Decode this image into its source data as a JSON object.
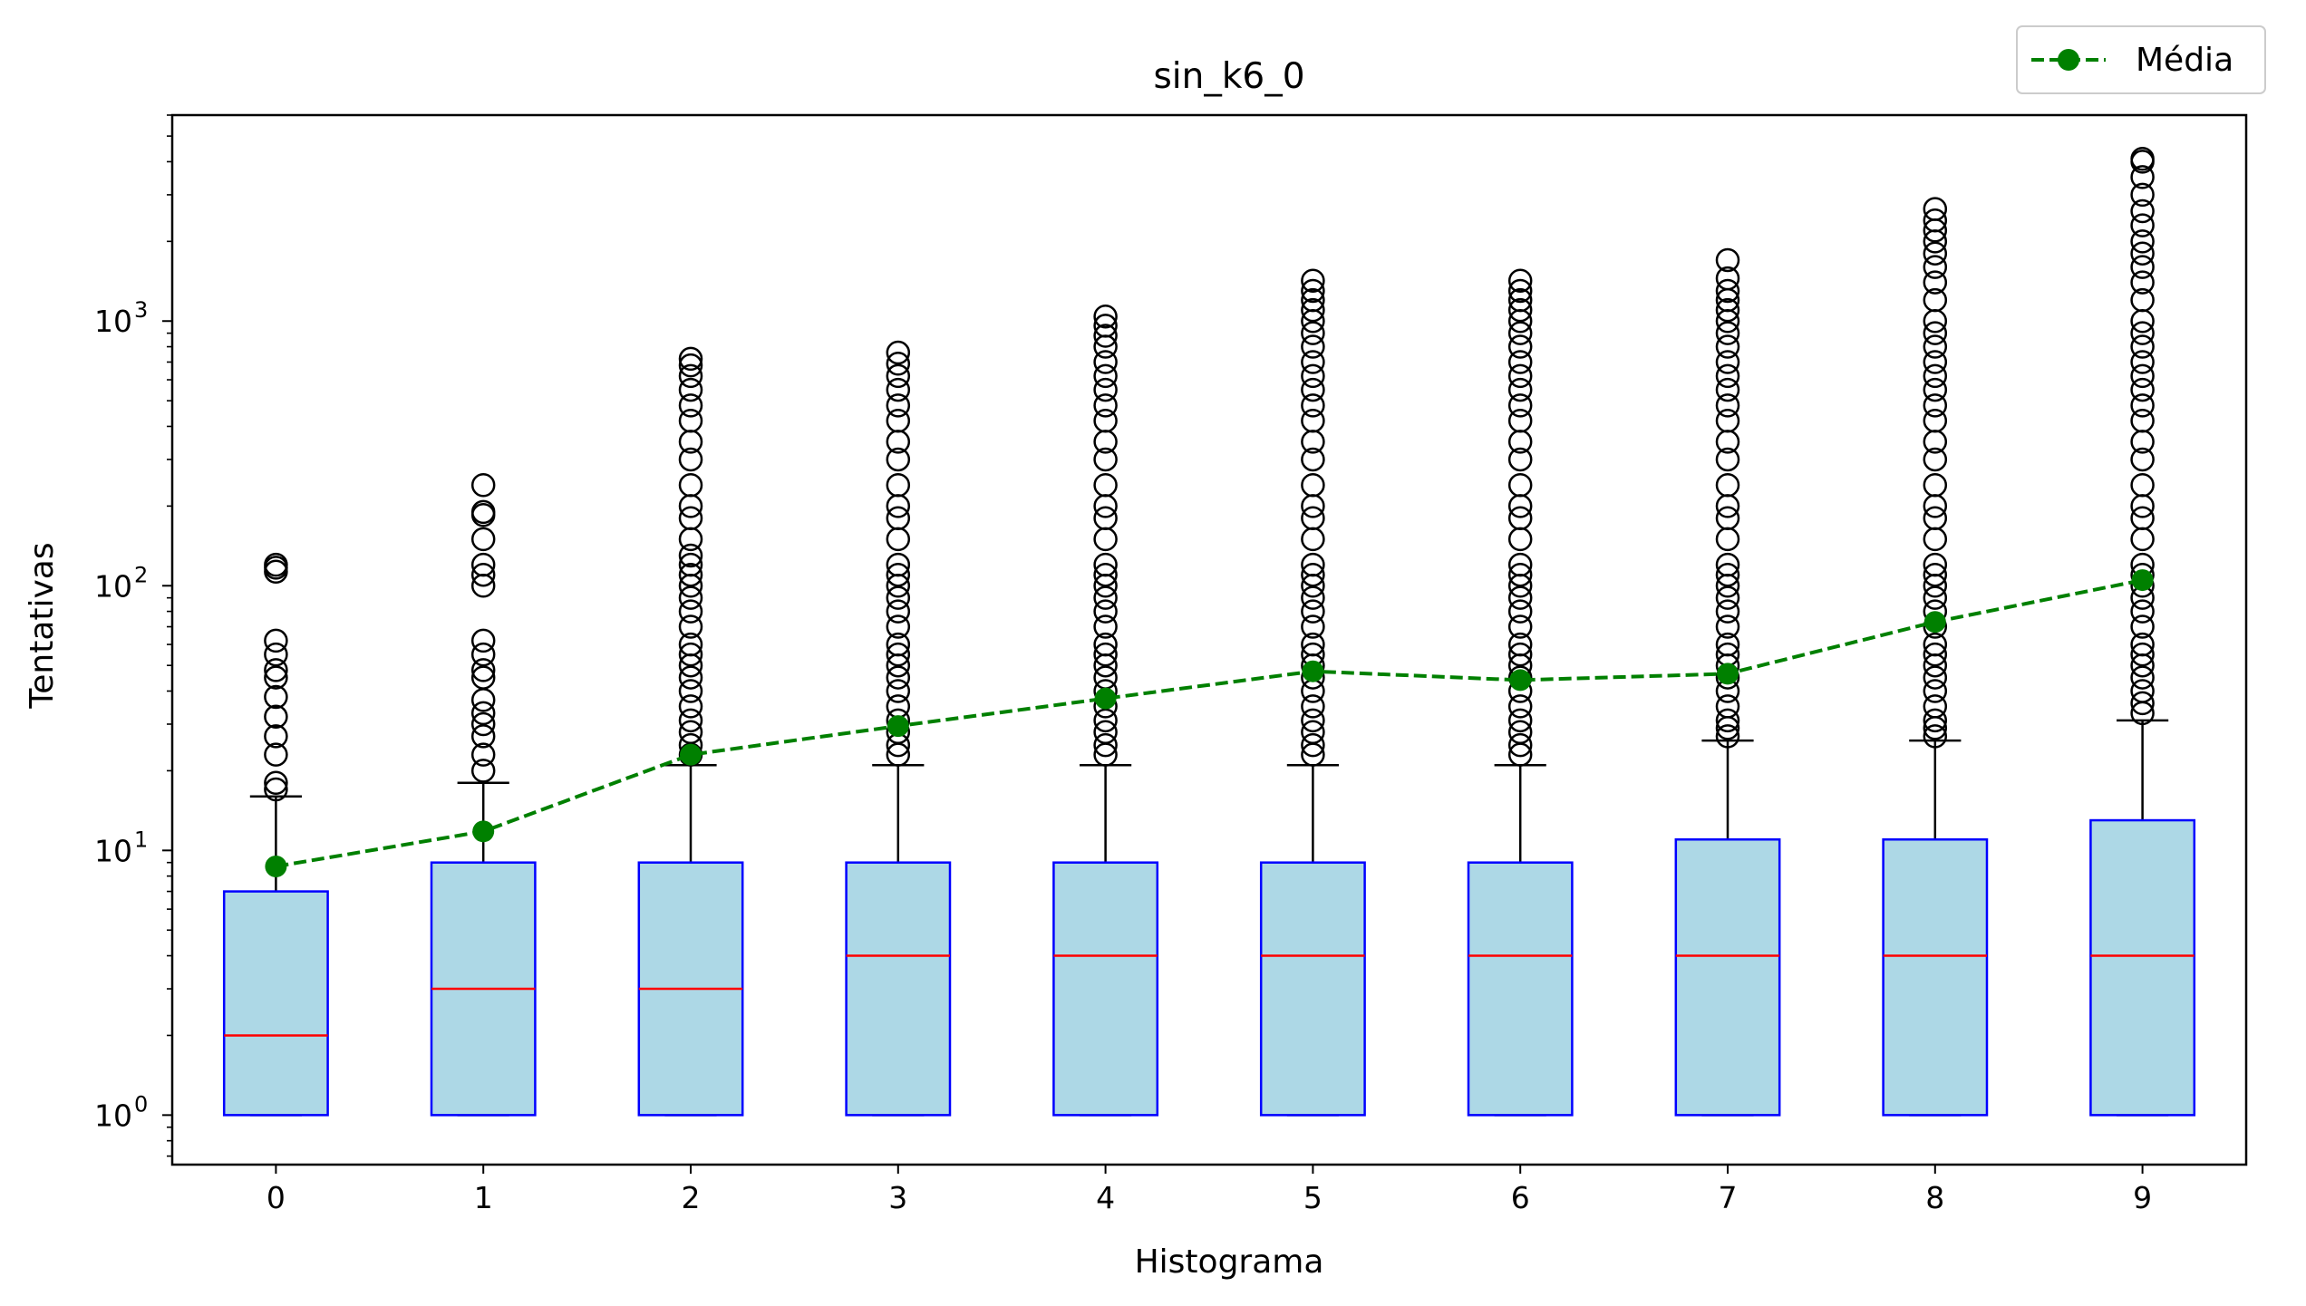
{
  "chart_data": {
    "type": "box",
    "title": "sin_k6_0",
    "xlabel": "Histograma",
    "ylabel": "Tentativas",
    "yscale": "log",
    "ylim": [
      0.65,
      6000
    ],
    "categories": [
      "0",
      "1",
      "2",
      "3",
      "4",
      "5",
      "6",
      "7",
      "8",
      "9"
    ],
    "y_ticks": [
      {
        "base": "10",
        "exp": "0",
        "value": 1
      },
      {
        "base": "10",
        "exp": "1",
        "value": 10
      },
      {
        "base": "10",
        "exp": "2",
        "value": 100
      },
      {
        "base": "10",
        "exp": "3",
        "value": 1000
      }
    ],
    "boxes": [
      {
        "category": "0",
        "whislo": 1,
        "q1": 1,
        "med": 2,
        "q3": 7,
        "whishi": 16,
        "fliers": [
          17,
          18,
          23,
          27,
          32,
          38,
          45,
          48,
          55,
          62,
          113,
          117,
          120
        ]
      },
      {
        "category": "1",
        "whislo": 1,
        "q1": 1,
        "med": 3,
        "q3": 9,
        "whishi": 18,
        "fliers": [
          20,
          23,
          27,
          30,
          33,
          37,
          45,
          48,
          55,
          62,
          100,
          110,
          120,
          150,
          185,
          190,
          240
        ]
      },
      {
        "category": "2",
        "whislo": 1,
        "q1": 1,
        "med": 3,
        "q3": 9,
        "whishi": 21,
        "fliers": [
          23,
          25,
          28,
          31,
          35,
          40,
          45,
          50,
          55,
          60,
          70,
          80,
          90,
          100,
          110,
          120,
          130,
          150,
          180,
          200,
          240,
          300,
          350,
          420,
          480,
          550,
          620,
          680,
          720
        ]
      },
      {
        "category": "3",
        "whislo": 1,
        "q1": 1,
        "med": 4,
        "q3": 9,
        "whishi": 21,
        "fliers": [
          23,
          25,
          28,
          31,
          35,
          40,
          45,
          50,
          55,
          60,
          70,
          80,
          90,
          100,
          110,
          120,
          150,
          180,
          200,
          240,
          300,
          350,
          420,
          480,
          550,
          620,
          690,
          760
        ]
      },
      {
        "category": "4",
        "whislo": 1,
        "q1": 1,
        "med": 4,
        "q3": 9,
        "whishi": 21,
        "fliers": [
          23,
          25,
          28,
          31,
          35,
          40,
          45,
          50,
          55,
          60,
          70,
          80,
          90,
          100,
          110,
          120,
          150,
          180,
          200,
          240,
          300,
          350,
          420,
          480,
          550,
          620,
          700,
          800,
          880,
          960,
          1040
        ]
      },
      {
        "category": "5",
        "whislo": 1,
        "q1": 1,
        "med": 4,
        "q3": 9,
        "whishi": 21,
        "fliers": [
          23,
          25,
          28,
          31,
          35,
          40,
          45,
          50,
          55,
          60,
          70,
          80,
          90,
          100,
          110,
          120,
          150,
          180,
          200,
          240,
          300,
          350,
          420,
          480,
          550,
          620,
          700,
          800,
          900,
          1000,
          1100,
          1200,
          1300,
          1420
        ]
      },
      {
        "category": "6",
        "whislo": 1,
        "q1": 1,
        "med": 4,
        "q3": 9,
        "whishi": 21,
        "fliers": [
          23,
          25,
          28,
          31,
          35,
          40,
          45,
          50,
          55,
          60,
          70,
          80,
          90,
          100,
          110,
          120,
          150,
          180,
          200,
          240,
          300,
          350,
          420,
          480,
          550,
          620,
          700,
          800,
          900,
          1000,
          1100,
          1200,
          1300,
          1420
        ]
      },
      {
        "category": "7",
        "whislo": 1,
        "q1": 1,
        "med": 4,
        "q3": 11,
        "whishi": 26,
        "fliers": [
          27,
          29,
          31,
          35,
          40,
          45,
          50,
          55,
          60,
          70,
          80,
          90,
          100,
          110,
          120,
          150,
          180,
          200,
          240,
          300,
          350,
          420,
          480,
          550,
          620,
          700,
          800,
          900,
          1000,
          1100,
          1200,
          1300,
          1450,
          1700
        ]
      },
      {
        "category": "8",
        "whislo": 1,
        "q1": 1,
        "med": 4,
        "q3": 11,
        "whishi": 26,
        "fliers": [
          27,
          29,
          31,
          35,
          40,
          45,
          50,
          55,
          60,
          70,
          80,
          90,
          100,
          110,
          120,
          150,
          180,
          200,
          240,
          300,
          350,
          420,
          480,
          550,
          620,
          700,
          800,
          900,
          1000,
          1200,
          1400,
          1600,
          1800,
          2000,
          2200,
          2400,
          2650
        ]
      },
      {
        "category": "9",
        "whislo": 1,
        "q1": 1,
        "med": 4,
        "q3": 13,
        "whishi": 31,
        "fliers": [
          33,
          36,
          40,
          45,
          50,
          55,
          60,
          70,
          80,
          90,
          100,
          110,
          120,
          150,
          180,
          200,
          240,
          300,
          350,
          420,
          480,
          550,
          620,
          700,
          800,
          900,
          1000,
          1200,
          1400,
          1600,
          1800,
          2000,
          2300,
          2600,
          3000,
          3500,
          4000,
          4100
        ]
      }
    ],
    "series": [
      {
        "name": "Média",
        "values": [
          8.7,
          11.8,
          23,
          29.5,
          37.5,
          47.5,
          44,
          46.5,
          73,
          105
        ]
      }
    ],
    "legend_position": "top-right",
    "grid": false
  },
  "colors": {
    "box_fill": "#add8e6",
    "box_edge": "#0000ff",
    "median": "#ff0000",
    "mean": "#008000",
    "axis": "#000000"
  }
}
